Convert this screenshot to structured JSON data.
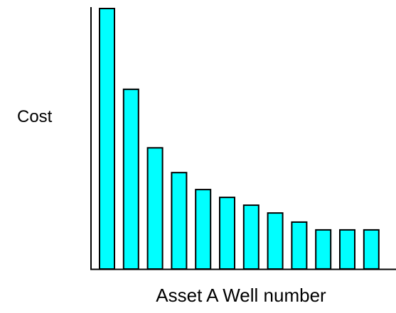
{
  "chart_data": {
    "type": "bar",
    "title": "",
    "xlabel": "Asset A Well number",
    "ylabel": "Cost",
    "categories": [
      "",
      "",
      "",
      "",
      "",
      "",
      "",
      "",
      "",
      "",
      "",
      ""
    ],
    "values": [
      100,
      69,
      46.5,
      37,
      30.5,
      27.5,
      24.5,
      21.5,
      18,
      15,
      15,
      15
    ],
    "ylim": [
      0,
      100
    ],
    "grid": false,
    "legend": "none",
    "bar_color": "#00ffff",
    "bar_outline": "#000000",
    "axis_color": "#000000"
  }
}
